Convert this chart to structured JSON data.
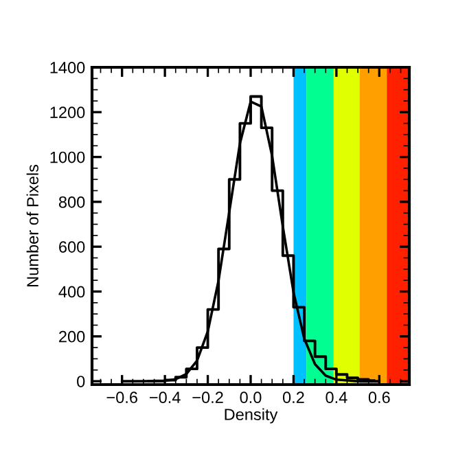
{
  "chart_data": {
    "type": "line",
    "xlabel": "Density",
    "ylabel": "Number of Pixels",
    "xlim": [
      -0.74,
      0.74
    ],
    "ylim": [
      -15,
      1400
    ],
    "xticks": [
      {
        "value": -0.6,
        "label": "−0.6"
      },
      {
        "value": -0.4,
        "label": "−0.4"
      },
      {
        "value": -0.2,
        "label": "−0.2"
      },
      {
        "value": 0.0,
        "label": "0.0"
      },
      {
        "value": 0.2,
        "label": "0.2"
      },
      {
        "value": 0.4,
        "label": "0.4"
      },
      {
        "value": 0.6,
        "label": "0.6"
      }
    ],
    "yticks": [
      0,
      200,
      400,
      600,
      800,
      1000,
      1200,
      1400
    ],
    "grid": false,
    "legend": false,
    "marker": "none",
    "line_style": "solid",
    "bands": [
      {
        "axis": "x",
        "from": 0.2,
        "to": 0.26,
        "color": "#00c0ff"
      },
      {
        "axis": "x",
        "from": 0.26,
        "to": 0.387,
        "color": "#00ff90"
      },
      {
        "axis": "x",
        "from": 0.387,
        "to": 0.508,
        "color": "#e0ff00"
      },
      {
        "axis": "x",
        "from": 0.508,
        "to": 0.635,
        "color": "#ffa000"
      },
      {
        "axis": "x",
        "from": 0.635,
        "to": 0.74,
        "color": "#ff2000"
      }
    ],
    "series": [
      {
        "type": "step",
        "color": "#000000",
        "x": [
          -0.475,
          -0.425,
          -0.375,
          -0.325,
          -0.275,
          -0.225,
          -0.175,
          -0.125,
          -0.075,
          -0.025,
          0.025,
          0.075,
          0.125,
          0.175,
          0.225,
          0.275,
          0.325,
          0.375,
          0.425,
          0.475,
          0.525,
          0.575
        ],
        "values": [
          0,
          1,
          5,
          18,
          55,
          150,
          320,
          590,
          900,
          1150,
          1270,
          1130,
          850,
          560,
          330,
          180,
          110,
          55,
          30,
          15,
          8,
          3
        ]
      },
      {
        "color": "#000000",
        "x": [
          -0.6,
          -0.5,
          -0.4,
          -0.35,
          -0.3,
          -0.25,
          -0.2,
          -0.15,
          -0.1,
          -0.05,
          0.0,
          0.05,
          0.1,
          0.15,
          0.2,
          0.25,
          0.3,
          0.35,
          0.4,
          0.5,
          0.6
        ],
        "values": [
          0,
          0,
          2,
          9,
          32,
          92,
          222,
          448,
          754,
          1061,
          1247,
          1225,
          1005,
          690,
          396,
          190,
          76,
          25,
          7,
          0,
          0
        ]
      }
    ]
  }
}
